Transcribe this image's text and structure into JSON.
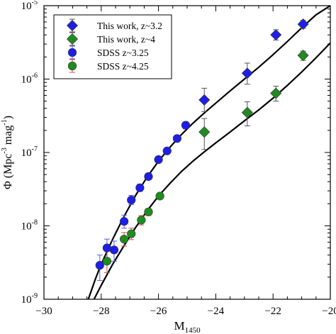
{
  "chart_data": {
    "type": "scatter",
    "title": "",
    "xlabel": "M",
    "xlabel_sub": "1450",
    "ylabel_parts": [
      "Φ (Mpc",
      "-3",
      " mag",
      "-1",
      ")"
    ],
    "xlim": [
      -30,
      -20
    ],
    "ylim": [
      1e-09,
      1e-05
    ],
    "yscale": "log",
    "grid": false,
    "legend_position": "top-left",
    "x_ticks": [
      {
        "value": -30,
        "label": "−30"
      },
      {
        "value": -28,
        "label": "−28"
      },
      {
        "value": -26,
        "label": "−26"
      },
      {
        "value": -24,
        "label": "−24"
      },
      {
        "value": -22,
        "label": "−22"
      },
      {
        "value": -20,
        "label": "−20"
      }
    ],
    "y_ticks": [
      {
        "value": 1e-09,
        "base": "10",
        "exp": "-9"
      },
      {
        "value": 1e-08,
        "base": "10",
        "exp": "-8"
      },
      {
        "value": 1e-07,
        "base": "10",
        "exp": "-7"
      },
      {
        "value": 1e-06,
        "base": "10",
        "exp": "-6"
      },
      {
        "value": 1e-05,
        "base": "10",
        "exp": "-5"
      }
    ],
    "series": [
      {
        "name": "This work, z~3.2",
        "marker": "diamond",
        "color": "#1e1ee6",
        "points": [
          {
            "x": -24.4,
            "y": 5.2e-07,
            "lo": 3.6e-07,
            "hi": 7.5e-07
          },
          {
            "x": -22.9,
            "y": 1.2e-06,
            "lo": 8.5e-07,
            "hi": 1.65e-06
          },
          {
            "x": -21.9,
            "y": 4e-06,
            "lo": 3.4e-06,
            "hi": 4.7e-06
          },
          {
            "x": -20.95,
            "y": 5.6e-06,
            "lo": 4.9e-06,
            "hi": 6.3e-06
          }
        ]
      },
      {
        "name": "This work, z~4",
        "marker": "diamond",
        "color": "#1e8c1e",
        "points": [
          {
            "x": -24.4,
            "y": 1.9e-07,
            "lo": 1.1e-07,
            "hi": 2.9e-07
          },
          {
            "x": -22.9,
            "y": 3.5e-07,
            "lo": 2.3e-07,
            "hi": 4.9e-07
          },
          {
            "x": -21.9,
            "y": 6.4e-07,
            "lo": 5e-07,
            "hi": 8e-07
          },
          {
            "x": -20.95,
            "y": 2.1e-06,
            "lo": 1.8e-06,
            "hi": 2.4e-06
          }
        ]
      },
      {
        "name": "SDSS z~3.25",
        "marker": "circle",
        "color": "#1e1ee6",
        "error_color": "#5a5ae0",
        "points": [
          {
            "x": -28.05,
            "y": 2.9e-09,
            "lo": 1.8e-09,
            "hi": 4e-09
          },
          {
            "x": -27.8,
            "y": 5e-09,
            "lo": 3.6e-09,
            "hi": 6.6e-09
          },
          {
            "x": -27.55,
            "y": 4.7e-09,
            "lo": 3.3e-09,
            "hi": 6.2e-09
          },
          {
            "x": -27.2,
            "y": 1.15e-08,
            "lo": 9.3e-09,
            "hi": 1.4e-08
          },
          {
            "x": -26.95,
            "y": 2.25e-08,
            "lo": 1.95e-08,
            "hi": 2.6e-08
          },
          {
            "x": -26.65,
            "y": 3.3e-08,
            "lo": 2.95e-08,
            "hi": 3.7e-08
          },
          {
            "x": -26.35,
            "y": 4.7e-08,
            "lo": 4.25e-08,
            "hi": 5.2e-08
          },
          {
            "x": -26.0,
            "y": 8e-08,
            "lo": 7.4e-08,
            "hi": 8.7e-08
          },
          {
            "x": -25.7,
            "y": 1.05e-07,
            "lo": 9.8e-08,
            "hi": 1.13e-07
          },
          {
            "x": -25.35,
            "y": 1.55e-07,
            "lo": 1.45e-07,
            "hi": 1.66e-07
          },
          {
            "x": -25.05,
            "y": 2.35e-07,
            "lo": 2.1e-07,
            "hi": 2.6e-07
          }
        ]
      },
      {
        "name": "SDSS z~4.25",
        "marker": "circle",
        "color": "#1e8c1e",
        "error_color": "#c85050",
        "points": [
          {
            "x": -27.8,
            "y": 3.3e-09,
            "lo": 2.3e-09,
            "hi": 4.6e-09
          },
          {
            "x": -27.2,
            "y": 6.6e-09,
            "lo": 5.3e-09,
            "hi": 8.1e-09
          },
          {
            "x": -26.95,
            "y": 7.8e-09,
            "lo": 6.5e-09,
            "hi": 9.3e-09
          },
          {
            "x": -26.6,
            "y": 1.2e-08,
            "lo": 1.03e-08,
            "hi": 1.38e-08
          },
          {
            "x": -26.35,
            "y": 1.55e-08,
            "lo": 1.38e-08,
            "hi": 1.73e-08
          },
          {
            "x": -25.95,
            "y": 2.55e-08,
            "lo": 2.35e-08,
            "hi": 2.78e-08
          }
        ]
      }
    ],
    "fit_curves": [
      {
        "for": "z~3.2",
        "color": "#000000",
        "points": [
          [
            -28.45,
            1e-09
          ],
          [
            -28.2,
            1.9e-09
          ],
          [
            -28.0,
            3e-09
          ],
          [
            -27.6,
            6.6e-09
          ],
          [
            -27.2,
            1.35e-08
          ],
          [
            -26.8,
            2.6e-08
          ],
          [
            -26.4,
            4.6e-08
          ],
          [
            -26.0,
            7.6e-08
          ],
          [
            -25.6,
            1.18e-07
          ],
          [
            -25.2,
            1.75e-07
          ],
          [
            -24.8,
            2.5e-07
          ],
          [
            -24.4,
            3.45e-07
          ],
          [
            -24.0,
            4.7e-07
          ],
          [
            -23.5,
            6.9e-07
          ],
          [
            -23.0,
            1e-06
          ],
          [
            -22.5,
            1.45e-06
          ],
          [
            -22.0,
            2.15e-06
          ],
          [
            -21.5,
            3.25e-06
          ],
          [
            -21.0,
            5e-06
          ],
          [
            -20.5,
            7.5e-06
          ],
          [
            -20.0,
            1e-05
          ]
        ]
      },
      {
        "for": "z~4",
        "color": "#000000",
        "points": [
          [
            -28.25,
            1e-09
          ],
          [
            -28.0,
            1.55e-09
          ],
          [
            -27.6,
            3e-09
          ],
          [
            -27.2,
            5.4e-09
          ],
          [
            -26.8,
            9.5e-09
          ],
          [
            -26.4,
            1.6e-08
          ],
          [
            -26.0,
            2.55e-08
          ],
          [
            -25.6,
            3.8e-08
          ],
          [
            -25.2,
            5.5e-08
          ],
          [
            -24.8,
            7.6e-08
          ],
          [
            -24.4,
            1.02e-07
          ],
          [
            -24.0,
            1.35e-07
          ],
          [
            -23.5,
            1.9e-07
          ],
          [
            -23.0,
            2.7e-07
          ],
          [
            -22.5,
            3.8e-07
          ],
          [
            -22.0,
            5.5e-07
          ],
          [
            -21.5,
            8.2e-07
          ],
          [
            -21.0,
            1.25e-06
          ],
          [
            -20.5,
            1.95e-06
          ],
          [
            -20.0,
            3.1e-06
          ]
        ]
      }
    ]
  }
}
